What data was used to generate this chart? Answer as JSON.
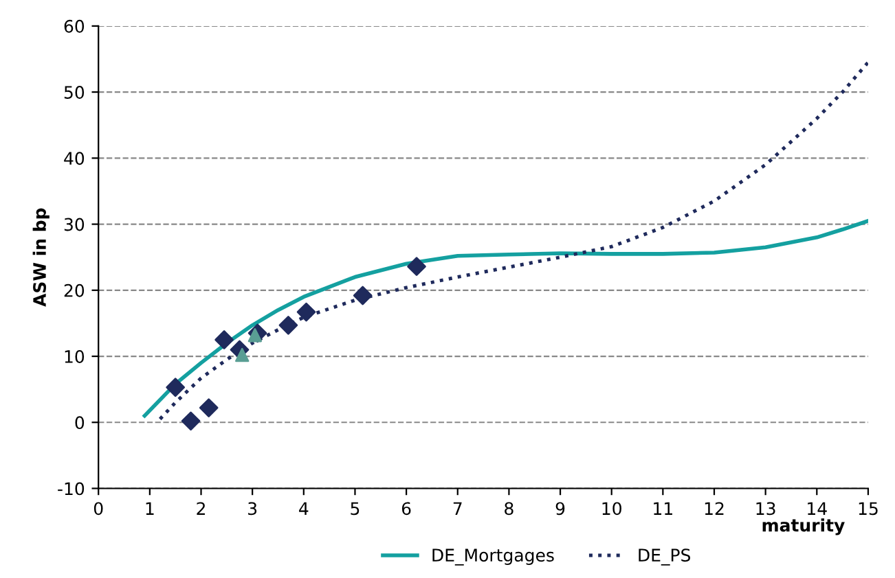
{
  "chart_data": {
    "type": "scatter",
    "xlabel": "maturity",
    "ylabel": "ASW in bp",
    "xlim": [
      0,
      15
    ],
    "ylim": [
      -10,
      60
    ],
    "xticks": [
      0,
      1,
      2,
      3,
      4,
      5,
      6,
      7,
      8,
      9,
      10,
      11,
      12,
      13,
      14,
      15
    ],
    "yticks": [
      -10,
      0,
      10,
      20,
      30,
      40,
      50,
      60
    ],
    "grid": "y",
    "legend": "bottom",
    "series": [
      {
        "marker": "diamond",
        "color": "#1f2a5c",
        "x": [
          1.5,
          1.8,
          2.15,
          2.45,
          2.75,
          3.1,
          3.7,
          4.05,
          5.15,
          6.2
        ],
        "values": [
          5.3,
          0.2,
          2.2,
          12.5,
          11,
          13.5,
          14.7,
          16.7,
          19.2,
          23.6
        ]
      },
      {
        "type": "scatter",
        "marker": "triangle",
        "color": "#5a9e94",
        "x": [
          2.8,
          3.05
        ],
        "values": [
          10.2,
          13.2
        ]
      },
      {
        "type": "line",
        "name": "DE_Mortgages",
        "line_style": "solid",
        "color": "#14a0a0",
        "x": [
          0.9,
          1.5,
          2,
          2.5,
          3,
          3.5,
          4,
          5,
          6,
          7,
          8,
          9,
          10,
          11,
          12,
          13,
          14,
          14.5,
          15
        ],
        "values": [
          1,
          5.8,
          9,
          12,
          14.7,
          17,
          19,
          22,
          24,
          25.2,
          25.4,
          25.6,
          25.5,
          25.5,
          25.7,
          26.5,
          28,
          29.2,
          30.5
        ]
      },
      {
        "type": "line",
        "name": "DE_PS",
        "line_style": "dotted",
        "color": "#1f2a5c",
        "x": [
          1.2,
          1.5,
          2,
          2.5,
          3,
          3.5,
          4,
          5,
          6,
          7,
          8,
          9,
          10,
          11,
          12,
          13,
          14,
          14.5,
          15
        ],
        "values": [
          0.5,
          3,
          6.7,
          9.5,
          12,
          14,
          15.9,
          18.5,
          20.4,
          22,
          23.5,
          25,
          26.6,
          29.5,
          33.5,
          39,
          46,
          50,
          54.5
        ]
      }
    ]
  }
}
